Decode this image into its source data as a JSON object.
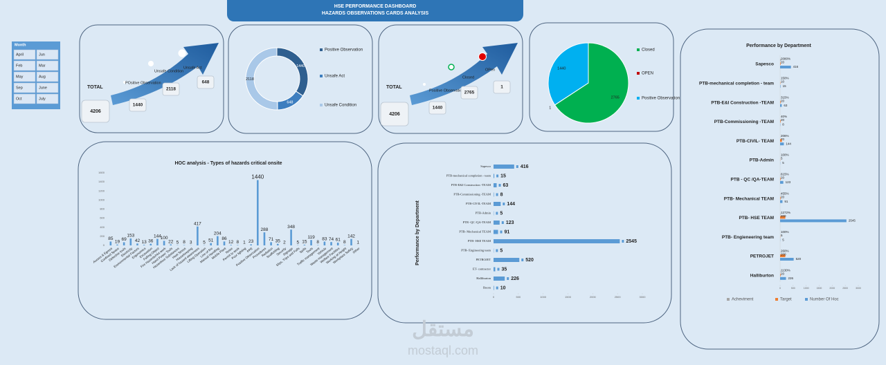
{
  "header": {
    "title": "HSE PERFORMANCE DASHBOARD",
    "subtitle": "HAZARDS OBSERVATIONS CARDS  ANALYSIS"
  },
  "slicer": {
    "title": "Month",
    "items": [
      "April",
      "Jun",
      "Feb",
      "Mar",
      "May",
      "Aug",
      "Sep",
      "June",
      "Oct",
      "July"
    ]
  },
  "cards": [
    {
      "total_label": "TOTAL",
      "total": 4206,
      "items": [
        {
          "label": "POsitive Observation",
          "value": 1440
        },
        {
          "label": "Unsafe Condition",
          "value": 2118
        },
        {
          "label": "Unsafe Act",
          "value": 648
        }
      ]
    },
    {
      "total_label": "TOTAL",
      "total": 4206,
      "items": [
        {
          "label": "Positive Observation",
          "value": 1440
        },
        {
          "label": "Closed",
          "value": 2765
        },
        {
          "label": "OPen",
          "value": 1
        }
      ]
    }
  ],
  "chart_data": [
    {
      "type": "donut",
      "categories": [
        "Positive Observation",
        "Unsafe Act",
        "Unsafe Condition"
      ],
      "values": [
        1440,
        648,
        2118
      ],
      "colors": [
        "#2f5f8f",
        "#3d7ebf",
        "#a9c8e8"
      ]
    },
    {
      "type": "pie",
      "categories": [
        "Closed",
        "OPEN",
        "Positive Observation"
      ],
      "values": [
        2765,
        1,
        1440
      ],
      "colors": [
        "#00b050",
        "#c00000",
        "#00b0f0"
      ]
    },
    {
      "type": "bar",
      "title": "HOC analysis - Types of hazards critical onsite",
      "categories": [
        "Access & Egress",
        "Confined Space",
        "Defective tools",
        "Electricity",
        "Environmental Factors",
        "Ergonomics",
        "Excavation",
        "Falling Object",
        "Fire Hazards/Hot work",
        "Hand Power Tools",
        "Hazardous Substances",
        "Heat Stress",
        "Housekeeping",
        "Lack of hazard awareness",
        "Lifting Operation",
        "Line of fire",
        "Manual Handling",
        "Mobile Plant",
        "Noise",
        "Permit to work",
        "Poor lighting",
        "PPE",
        "Positive Observation",
        "Procedures",
        "Radiation",
        "Scaffolding",
        "Security",
        "Signage",
        "Slips, Trips and Falls",
        "Spills",
        "Tools",
        "Traffic management",
        "Vehicle",
        "Waste management",
        "Welfare Facilities",
        "Working at Height",
        "Workplace Safety",
        "Other"
      ],
      "values": [
        85,
        19,
        69,
        153,
        42,
        13,
        36,
        144,
        100,
        22,
        5,
        8,
        3,
        417,
        5,
        51,
        204,
        86,
        12,
        8,
        1,
        23,
        1440,
        288,
        71,
        35,
        2,
        348,
        5,
        15,
        119,
        8,
        83,
        74,
        61,
        8,
        142,
        1
      ],
      "color": "#5b9bd5",
      "ylim": [
        0,
        1600
      ],
      "yticks": [
        0,
        200,
        400,
        600,
        800,
        1000,
        1200,
        1400,
        1600
      ]
    },
    {
      "type": "hbar",
      "y_label": "Performance by Department",
      "categories": [
        "Sapesco",
        "PTB-mechanical completion - team",
        "PTB-E&I Construction -TEAM",
        "PTB-Commissioning -TEAM",
        "PTB-CIVIL-TEAM",
        "PTB-Admin",
        "PTB -QC /QA-TEAM",
        "PTB- Mechanical TEAM",
        "PTB- HSE TEAM",
        "PTB- Engineering team",
        "PETROJET",
        "ET- contractor",
        "Halliburton",
        "Boom"
      ],
      "values": [
        416,
        15,
        63,
        8,
        144,
        5,
        123,
        91,
        2545,
        5,
        520,
        35,
        226,
        10
      ],
      "color": "#5b9bd5",
      "xlim": [
        0,
        3000
      ],
      "xticks": [
        0,
        500,
        1000,
        1500,
        2000,
        2500,
        3000
      ]
    },
    {
      "type": "grouped-hbar",
      "title": "Performance by Department",
      "categories": [
        "Sapesco",
        "PTB-mechanical completion - team",
        "PTB-E&I Construction -TEAM",
        "PTB-Commissioning -TEAM",
        "PTB-CIVIL- TEAM",
        "PTB-Admin",
        "PTB - QC /QA-TEAM",
        "PTB- Mechanical TEAM",
        "PTB- HSE TEAM",
        "PTB- Engieneering team",
        "PETROJET",
        "Halliburton"
      ],
      "series": [
        {
          "name": "Acheviment",
          "color": "#a5a5a5",
          "values": [
            20.8,
            1.5,
            3.15,
            0.4,
            2.06,
            1,
            6.15,
            4.55,
            12.72,
            1,
            2.6,
            11.3
          ],
          "value_labels": [
            "2080%",
            "150%",
            "315%",
            "40%",
            "206%",
            "100%",
            "615%",
            "455%",
            "1272%",
            "100%",
            "260%",
            "1130%"
          ]
        },
        {
          "name": "Target",
          "color": "#ed7d31",
          "values": [
            20,
            10,
            20,
            20,
            70,
            5,
            20,
            20,
            200,
            5,
            200,
            20
          ]
        },
        {
          "name": "Number Of Hoc",
          "color": "#5b9bd5",
          "values": [
            416,
            15,
            63,
            8,
            144,
            5,
            123,
            91,
            2545,
            5,
            520,
            226
          ]
        }
      ],
      "xlim": [
        0,
        3000
      ],
      "xticks": [
        0,
        500,
        1000,
        1500,
        2000,
        2500,
        3000
      ],
      "legend": "bottom"
    }
  ],
  "watermark": {
    "arabic": "مستقل",
    "latin": "mostaql.com"
  }
}
